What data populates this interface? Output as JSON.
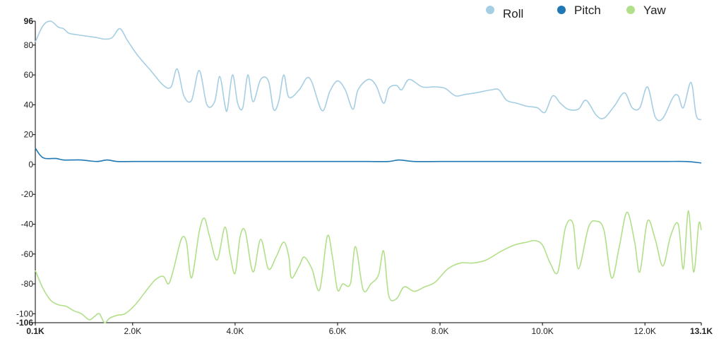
{
  "chart_data": {
    "type": "line",
    "xlim": [
      100,
      13100
    ],
    "ylim": [
      -106,
      96
    ],
    "x_ticks": [
      {
        "value": 100,
        "label": "0.1K",
        "bold": true
      },
      {
        "value": 2000,
        "label": "2.0K"
      },
      {
        "value": 4000,
        "label": "4.0K"
      },
      {
        "value": 6000,
        "label": "6.0K"
      },
      {
        "value": 8000,
        "label": "8.0K"
      },
      {
        "value": 10000,
        "label": "10.0K"
      },
      {
        "value": 12000,
        "label": "12.0K"
      },
      {
        "value": 13100,
        "label": "13.1K",
        "bold": true
      }
    ],
    "y_ticks": [
      {
        "value": 96,
        "label": "96",
        "bold": true
      },
      {
        "value": 80,
        "label": "80"
      },
      {
        "value": 60,
        "label": "60"
      },
      {
        "value": 40,
        "label": "40"
      },
      {
        "value": 20,
        "label": "20"
      },
      {
        "value": 0,
        "label": "0"
      },
      {
        "value": -20,
        "label": "-20"
      },
      {
        "value": -40,
        "label": "-40"
      },
      {
        "value": -60,
        "label": "-60"
      },
      {
        "value": -80,
        "label": "-80"
      },
      {
        "value": -100,
        "label": "-100"
      },
      {
        "value": -106,
        "label": "-106",
        "bold": true
      }
    ],
    "legend_position": "top-right",
    "series": [
      {
        "name": "Roll",
        "color": "#a6cee3",
        "points": [
          [
            100,
            82
          ],
          [
            250,
            93
          ],
          [
            400,
            96
          ],
          [
            550,
            92
          ],
          [
            650,
            91
          ],
          [
            750,
            88
          ],
          [
            900,
            87
          ],
          [
            1100,
            86
          ],
          [
            1300,
            85
          ],
          [
            1450,
            84
          ],
          [
            1600,
            85
          ],
          [
            1750,
            91
          ],
          [
            1900,
            83
          ],
          [
            2100,
            73
          ],
          [
            2350,
            63
          ],
          [
            2600,
            53
          ],
          [
            2750,
            52
          ],
          [
            2870,
            64
          ],
          [
            3000,
            46
          ],
          [
            3150,
            43
          ],
          [
            3300,
            63
          ],
          [
            3450,
            40
          ],
          [
            3600,
            42
          ],
          [
            3700,
            59
          ],
          [
            3800,
            40
          ],
          [
            3850,
            37
          ],
          [
            3950,
            60
          ],
          [
            4050,
            41
          ],
          [
            4150,
            38
          ],
          [
            4250,
            60
          ],
          [
            4350,
            42
          ],
          [
            4500,
            57
          ],
          [
            4650,
            56
          ],
          [
            4750,
            37
          ],
          [
            4850,
            42
          ],
          [
            4950,
            60
          ],
          [
            5050,
            45
          ],
          [
            5250,
            50
          ],
          [
            5400,
            58
          ],
          [
            5500,
            55
          ],
          [
            5700,
            36
          ],
          [
            5850,
            49
          ],
          [
            6000,
            56
          ],
          [
            6150,
            50
          ],
          [
            6300,
            37
          ],
          [
            6400,
            50
          ],
          [
            6600,
            57
          ],
          [
            6750,
            53
          ],
          [
            6900,
            41
          ],
          [
            7000,
            51
          ],
          [
            7150,
            53
          ],
          [
            7250,
            50
          ],
          [
            7400,
            57
          ],
          [
            7650,
            52
          ],
          [
            7900,
            52
          ],
          [
            8100,
            51
          ],
          [
            8300,
            46
          ],
          [
            8500,
            47
          ],
          [
            8700,
            48
          ],
          [
            9000,
            50
          ],
          [
            9150,
            50
          ],
          [
            9300,
            43
          ],
          [
            9500,
            41
          ],
          [
            9700,
            39
          ],
          [
            9900,
            38
          ],
          [
            10050,
            35
          ],
          [
            10200,
            46
          ],
          [
            10350,
            41
          ],
          [
            10500,
            37
          ],
          [
            10700,
            37
          ],
          [
            10850,
            43
          ],
          [
            11050,
            33
          ],
          [
            11200,
            31
          ],
          [
            11400,
            39
          ],
          [
            11600,
            48
          ],
          [
            11750,
            38
          ],
          [
            11900,
            38
          ],
          [
            12050,
            52
          ],
          [
            12200,
            32
          ],
          [
            12350,
            31
          ],
          [
            12550,
            45
          ],
          [
            12650,
            46
          ],
          [
            12750,
            38
          ],
          [
            12900,
            55
          ],
          [
            13000,
            33
          ],
          [
            13100,
            30
          ]
        ]
      },
      {
        "name": "Pitch",
        "color": "#1f78b4",
        "points": [
          [
            100,
            11
          ],
          [
            200,
            6
          ],
          [
            300,
            4
          ],
          [
            500,
            4
          ],
          [
            650,
            3
          ],
          [
            800,
            3
          ],
          [
            1000,
            3
          ],
          [
            1300,
            2
          ],
          [
            1500,
            3
          ],
          [
            1700,
            2
          ],
          [
            2000,
            2
          ],
          [
            2400,
            2
          ],
          [
            2700,
            2
          ],
          [
            3000,
            2
          ],
          [
            3400,
            2
          ],
          [
            3800,
            2
          ],
          [
            4200,
            2
          ],
          [
            4600,
            2
          ],
          [
            5000,
            2
          ],
          [
            5400,
            2
          ],
          [
            5800,
            2
          ],
          [
            6200,
            2
          ],
          [
            6600,
            2
          ],
          [
            7000,
            2
          ],
          [
            7200,
            3
          ],
          [
            7500,
            2
          ],
          [
            8000,
            2
          ],
          [
            8500,
            2
          ],
          [
            9000,
            2
          ],
          [
            9500,
            2
          ],
          [
            10000,
            2
          ],
          [
            10400,
            2
          ],
          [
            10800,
            2
          ],
          [
            11200,
            2
          ],
          [
            11600,
            2
          ],
          [
            12000,
            2
          ],
          [
            12400,
            2
          ],
          [
            12800,
            2
          ],
          [
            13100,
            1
          ]
        ]
      },
      {
        "name": "Yaw",
        "color": "#b2df8a",
        "points": [
          [
            100,
            -71
          ],
          [
            250,
            -83
          ],
          [
            400,
            -91
          ],
          [
            550,
            -94
          ],
          [
            700,
            -95
          ],
          [
            850,
            -98
          ],
          [
            1000,
            -100
          ],
          [
            1150,
            -104
          ],
          [
            1250,
            -102
          ],
          [
            1350,
            -100
          ],
          [
            1450,
            -106
          ],
          [
            1550,
            -103
          ],
          [
            1700,
            -101
          ],
          [
            1850,
            -100
          ],
          [
            2050,
            -94
          ],
          [
            2300,
            -83
          ],
          [
            2450,
            -77
          ],
          [
            2600,
            -75
          ],
          [
            2700,
            -80
          ],
          [
            2800,
            -70
          ],
          [
            2950,
            -50
          ],
          [
            3050,
            -52
          ],
          [
            3150,
            -76
          ],
          [
            3300,
            -45
          ],
          [
            3400,
            -36
          ],
          [
            3500,
            -48
          ],
          [
            3650,
            -64
          ],
          [
            3800,
            -42
          ],
          [
            3900,
            -60
          ],
          [
            4000,
            -73
          ],
          [
            4100,
            -48
          ],
          [
            4200,
            -45
          ],
          [
            4350,
            -72
          ],
          [
            4500,
            -50
          ],
          [
            4650,
            -70
          ],
          [
            4800,
            -62
          ],
          [
            4950,
            -52
          ],
          [
            5050,
            -62
          ],
          [
            5100,
            -76
          ],
          [
            5250,
            -68
          ],
          [
            5350,
            -62
          ],
          [
            5500,
            -70
          ],
          [
            5650,
            -84
          ],
          [
            5800,
            -48
          ],
          [
            5900,
            -62
          ],
          [
            6000,
            -84
          ],
          [
            6100,
            -80
          ],
          [
            6250,
            -80
          ],
          [
            6350,
            -55
          ],
          [
            6500,
            -84
          ],
          [
            6650,
            -80
          ],
          [
            6800,
            -74
          ],
          [
            6900,
            -58
          ],
          [
            7000,
            -88
          ],
          [
            7150,
            -90
          ],
          [
            7300,
            -82
          ],
          [
            7500,
            -85
          ],
          [
            7700,
            -82
          ],
          [
            7900,
            -79
          ],
          [
            8150,
            -70
          ],
          [
            8400,
            -66
          ],
          [
            8650,
            -66
          ],
          [
            8900,
            -64
          ],
          [
            9200,
            -58
          ],
          [
            9450,
            -54
          ],
          [
            9700,
            -52
          ],
          [
            9850,
            -51
          ],
          [
            10000,
            -54
          ],
          [
            10150,
            -66
          ],
          [
            10300,
            -72
          ],
          [
            10450,
            -42
          ],
          [
            10600,
            -40
          ],
          [
            10700,
            -70
          ],
          [
            10900,
            -42
          ],
          [
            11050,
            -38
          ],
          [
            11200,
            -44
          ],
          [
            11350,
            -76
          ],
          [
            11500,
            -55
          ],
          [
            11650,
            -32
          ],
          [
            11800,
            -52
          ],
          [
            11900,
            -72
          ],
          [
            12050,
            -38
          ],
          [
            12200,
            -50
          ],
          [
            12350,
            -68
          ],
          [
            12500,
            -48
          ],
          [
            12650,
            -40
          ],
          [
            12750,
            -70
          ],
          [
            12850,
            -31
          ],
          [
            12950,
            -72
          ],
          [
            13050,
            -40
          ],
          [
            13100,
            -44
          ]
        ]
      }
    ]
  }
}
